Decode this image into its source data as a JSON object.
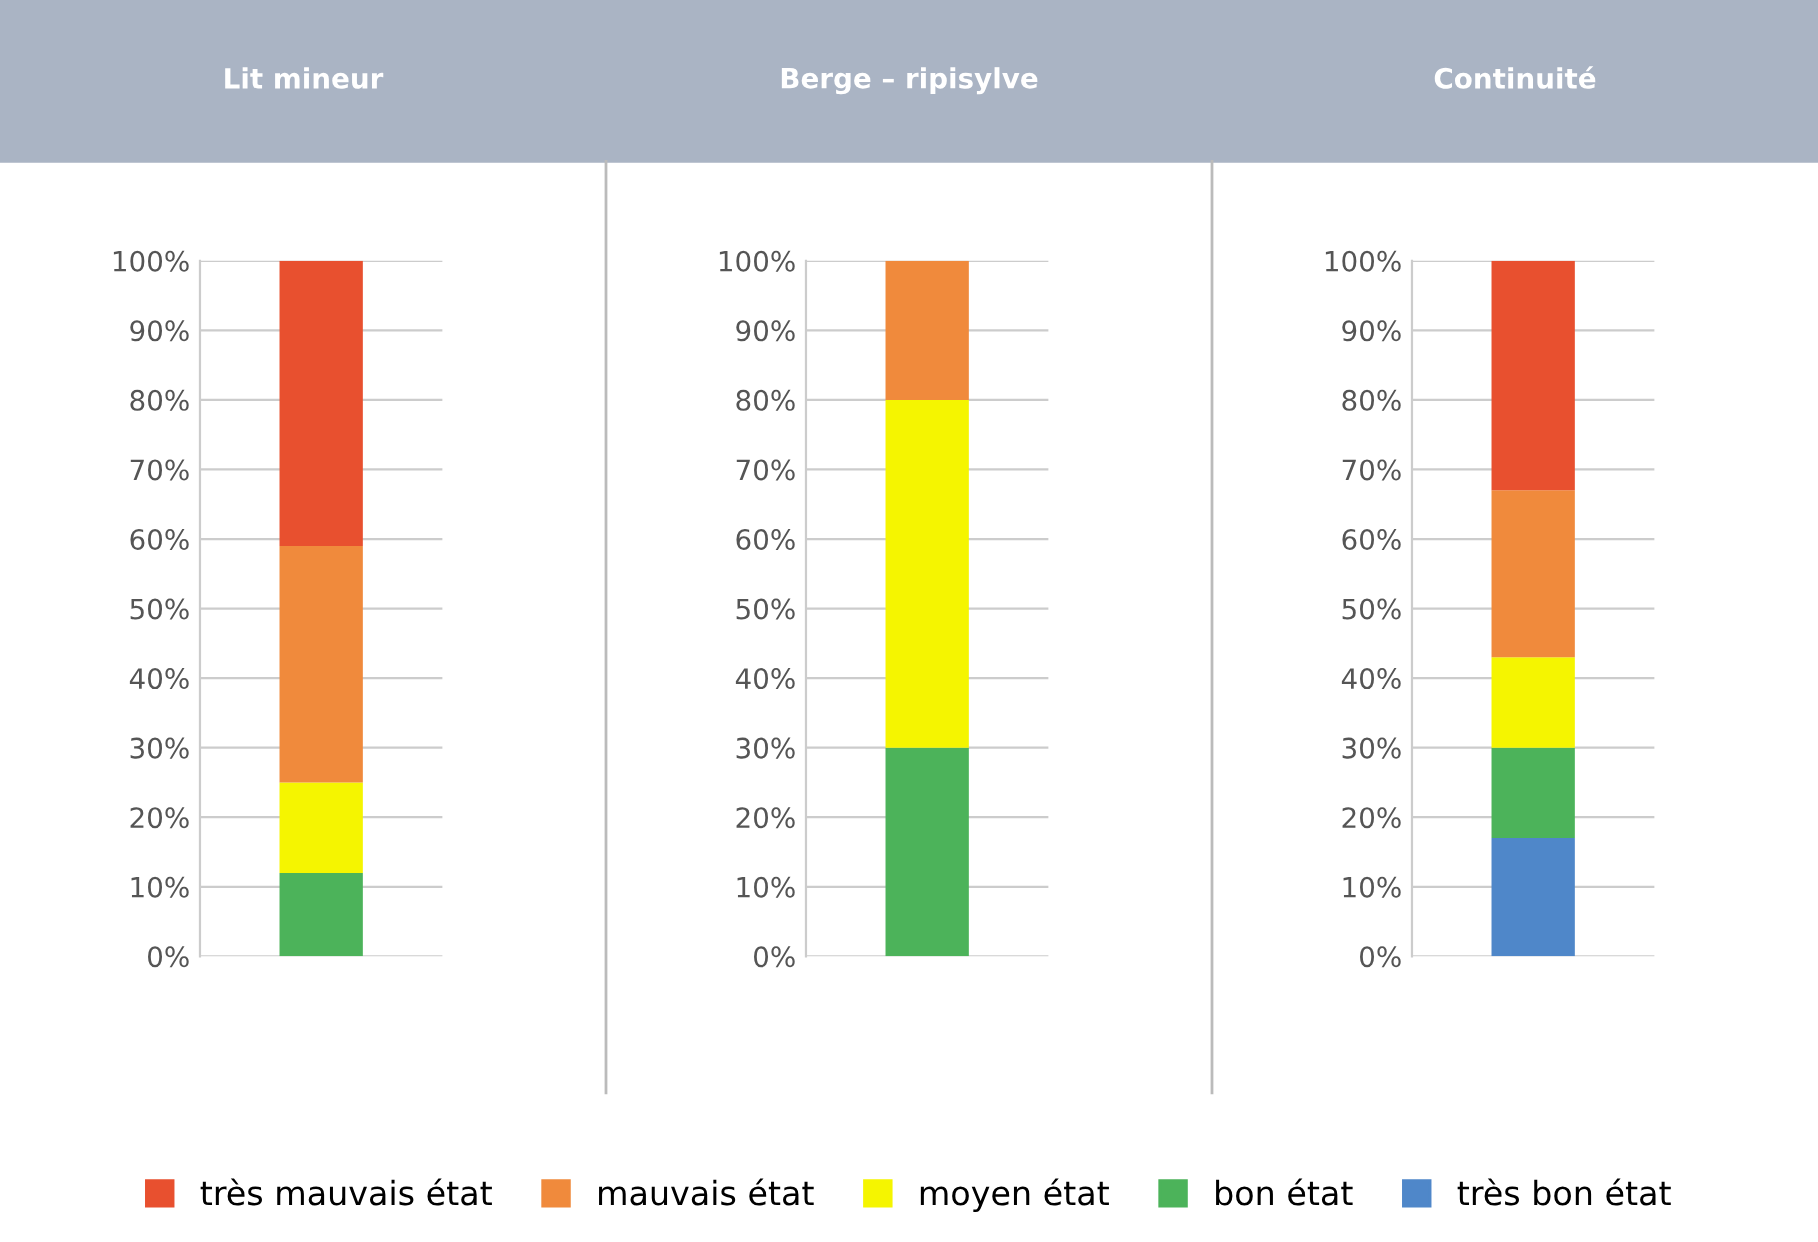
{
  "chart_data": [
    {
      "type": "bar",
      "title": "Lit mineur",
      "categories": [
        null
      ],
      "stacked": true,
      "ylim": [
        0,
        100
      ],
      "yticks": [
        {
          "value": 0,
          "label": "0%"
        },
        {
          "value": 10,
          "label": "10%"
        },
        {
          "value": 20,
          "label": "20%"
        },
        {
          "value": 30,
          "label": "30%"
        },
        {
          "value": 40,
          "label": "40%"
        },
        {
          "value": 50,
          "label": "50%"
        },
        {
          "value": 60,
          "label": "60%"
        },
        {
          "value": 70,
          "label": "70%"
        },
        {
          "value": 80,
          "label": "80%"
        },
        {
          "value": 90,
          "label": "90%"
        },
        {
          "value": 100,
          "label": "100%"
        }
      ],
      "grid": "y",
      "legend": "bottom",
      "series": [
        {
          "name": "très bon état",
          "color": "#4f87c9",
          "values": [
            0
          ]
        },
        {
          "name": "bon état",
          "color": "#4cb35a",
          "values": [
            12
          ]
        },
        {
          "name": "moyen état",
          "color": "#f5f500",
          "values": [
            13
          ]
        },
        {
          "name": "mauvais état",
          "color": "#f08a3c",
          "values": [
            34
          ]
        },
        {
          "name": "très mauvais état",
          "color": "#e8502f",
          "values": [
            41
          ]
        }
      ]
    },
    {
      "type": "bar",
      "title": "Berge – ripisylve",
      "categories": [
        null
      ],
      "stacked": true,
      "ylim": [
        0,
        100
      ],
      "yticks": [
        {
          "value": 0,
          "label": "0%"
        },
        {
          "value": 10,
          "label": "10%"
        },
        {
          "value": 20,
          "label": "20%"
        },
        {
          "value": 30,
          "label": "30%"
        },
        {
          "value": 40,
          "label": "40%"
        },
        {
          "value": 50,
          "label": "50%"
        },
        {
          "value": 60,
          "label": "60%"
        },
        {
          "value": 70,
          "label": "70%"
        },
        {
          "value": 80,
          "label": "80%"
        },
        {
          "value": 90,
          "label": "90%"
        },
        {
          "value": 100,
          "label": "100%"
        }
      ],
      "grid": "y",
      "series": [
        {
          "color": "#4f87c9",
          "values": [
            0
          ]
        },
        {
          "color": "#4cb35a",
          "values": [
            30
          ]
        },
        {
          "color": "#f5f500",
          "values": [
            50
          ]
        },
        {
          "color": "#f08a3c",
          "values": [
            20
          ]
        },
        {
          "color": "#e8502f",
          "values": [
            0
          ]
        }
      ]
    },
    {
      "type": "bar",
      "title": "Continuité",
      "categories": [
        null
      ],
      "stacked": true,
      "ylim": [
        0,
        100
      ],
      "yticks": [
        {
          "value": 0,
          "label": "0%"
        },
        {
          "value": 10,
          "label": "10%"
        },
        {
          "value": 20,
          "label": "20%"
        },
        {
          "value": 30,
          "label": "30%"
        },
        {
          "value": 40,
          "label": "40%"
        },
        {
          "value": 50,
          "label": "50%"
        },
        {
          "value": 60,
          "label": "60%"
        },
        {
          "value": 70,
          "label": "70%"
        },
        {
          "value": 80,
          "label": "80%"
        },
        {
          "value": 90,
          "label": "90%"
        },
        {
          "value": 100,
          "label": "100%"
        }
      ],
      "grid": "y",
      "series": [
        {
          "color": "#4f87c9",
          "values": [
            17
          ]
        },
        {
          "color": "#4cb35a",
          "values": [
            13
          ]
        },
        {
          "color": "#f5f500",
          "values": [
            13
          ]
        },
        {
          "color": "#f08a3c",
          "values": [
            24
          ]
        },
        {
          "color": "#e8502f",
          "values": [
            33
          ]
        }
      ]
    }
  ]
}
